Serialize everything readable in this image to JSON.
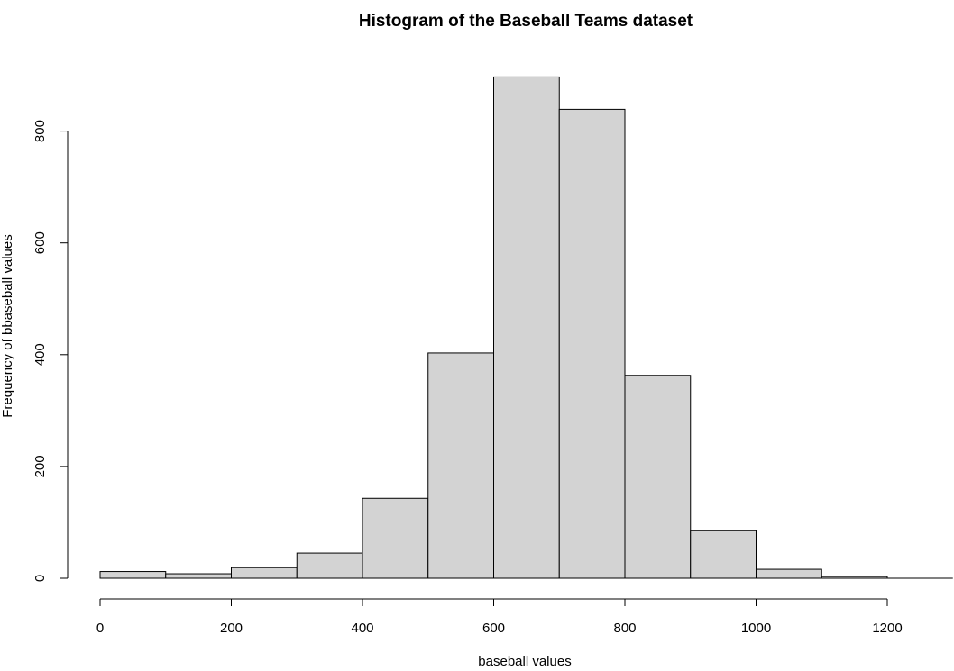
{
  "chart_data": {
    "type": "bar",
    "title": "Histogram of the Baseball Teams dataset",
    "xlabel": "baseball values",
    "ylabel": "Frequency of bbaseball values",
    "bins": [
      {
        "x0": 0,
        "x1": 100,
        "count": 12
      },
      {
        "x0": 100,
        "x1": 200,
        "count": 8
      },
      {
        "x0": 200,
        "x1": 300,
        "count": 19
      },
      {
        "x0": 300,
        "x1": 400,
        "count": 45
      },
      {
        "x0": 400,
        "x1": 500,
        "count": 143
      },
      {
        "x0": 500,
        "x1": 600,
        "count": 403
      },
      {
        "x0": 600,
        "x1": 700,
        "count": 897
      },
      {
        "x0": 700,
        "x1": 800,
        "count": 839
      },
      {
        "x0": 800,
        "x1": 900,
        "count": 363
      },
      {
        "x0": 900,
        "x1": 1000,
        "count": 85
      },
      {
        "x0": 1000,
        "x1": 1100,
        "count": 16
      },
      {
        "x0": 1100,
        "x1": 1200,
        "count": 3
      }
    ],
    "xticks": [
      0,
      200,
      400,
      600,
      800,
      1000,
      1200
    ],
    "xtick_labels": [
      "0",
      "200",
      "400",
      "600",
      "800",
      "1000",
      "1200"
    ],
    "yticks": [
      0,
      200,
      400,
      600,
      800
    ],
    "ytick_labels": [
      "0",
      "200",
      "400",
      "600",
      "800"
    ],
    "xlim": [
      0,
      1300
    ],
    "ylim": [
      0,
      900
    ],
    "bar_fill": "#d3d3d3",
    "bar_stroke": "#000000",
    "grid": false,
    "legend": "none"
  }
}
